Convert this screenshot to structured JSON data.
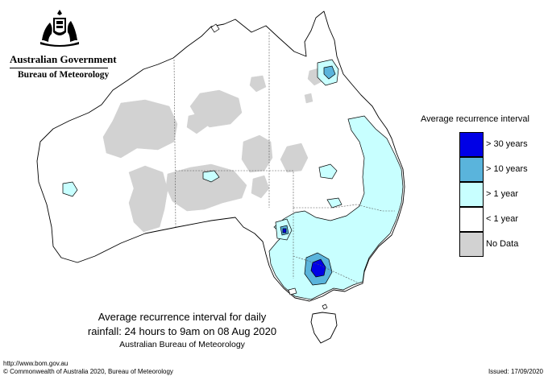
{
  "header": {
    "government": "Australian Government",
    "bureau": "Bureau of Meteorology"
  },
  "legend": {
    "title": "Average recurrence interval",
    "items": [
      {
        "label": "> 30 years",
        "color": "#0000e6"
      },
      {
        "label": "> 10 years",
        "color": "#5ab4dc"
      },
      {
        "label": "> 1 year",
        "color": "#c8ffff"
      },
      {
        "label": "< 1 year",
        "color": "#ffffff"
      },
      {
        "label": "No Data",
        "color": "#d2d2d2"
      }
    ]
  },
  "map": {
    "title_line1": "Average recurrence interval for daily",
    "title_line2": "rainfall: 24 hours to 9am on 08 Aug 2020",
    "source": "Australian Bureau of Meteorology"
  },
  "footer": {
    "url": "http://www.bom.gov.au",
    "copyright": "© Commonwealth of Australia 2020, Bureau of Meteorology",
    "issued": "Issued: 17/09/2020"
  }
}
